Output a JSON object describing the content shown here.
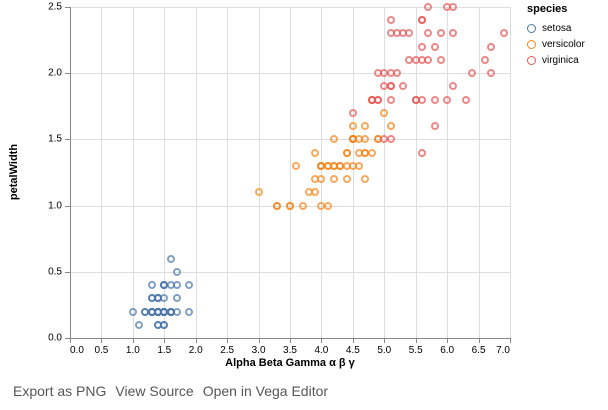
{
  "chart_data": {
    "type": "scatter",
    "xlabel": "Alpha Beta Gamma α β γ",
    "ylabel": "petalWidth",
    "xlim": [
      0,
      7
    ],
    "ylim": [
      0,
      2.5
    ],
    "x_tick_labels": [
      "0.0",
      "0.5",
      "1.0",
      "1.5",
      "2.0",
      "2.5",
      "3.0",
      "3.5",
      "4.0",
      "4.5",
      "5.0",
      "5.5",
      "6.0",
      "6.5",
      "7.0"
    ],
    "y_tick_labels": [
      "0.0",
      "0.5",
      "1.0",
      "1.5",
      "2.0",
      "2.5"
    ],
    "grid": true,
    "legend": {
      "title": "species",
      "position": "top-right"
    },
    "series": [
      {
        "name": "setosa",
        "color": "#4c78a8",
        "points": [
          [
            1.4,
            0.2
          ],
          [
            1.4,
            0.2
          ],
          [
            1.3,
            0.2
          ],
          [
            1.5,
            0.2
          ],
          [
            1.4,
            0.2
          ],
          [
            1.7,
            0.4
          ],
          [
            1.4,
            0.3
          ],
          [
            1.5,
            0.2
          ],
          [
            1.4,
            0.2
          ],
          [
            1.5,
            0.1
          ],
          [
            1.5,
            0.2
          ],
          [
            1.6,
            0.2
          ],
          [
            1.4,
            0.1
          ],
          [
            1.1,
            0.1
          ],
          [
            1.2,
            0.2
          ],
          [
            1.5,
            0.4
          ],
          [
            1.3,
            0.4
          ],
          [
            1.4,
            0.3
          ],
          [
            1.7,
            0.3
          ],
          [
            1.5,
            0.3
          ],
          [
            1.7,
            0.2
          ],
          [
            1.5,
            0.4
          ],
          [
            1.0,
            0.2
          ],
          [
            1.7,
            0.5
          ],
          [
            1.9,
            0.2
          ],
          [
            1.6,
            0.2
          ],
          [
            1.6,
            0.4
          ],
          [
            1.5,
            0.2
          ],
          [
            1.4,
            0.2
          ],
          [
            1.6,
            0.2
          ],
          [
            1.6,
            0.2
          ],
          [
            1.5,
            0.4
          ],
          [
            1.5,
            0.1
          ],
          [
            1.4,
            0.2
          ],
          [
            1.5,
            0.2
          ],
          [
            1.2,
            0.2
          ],
          [
            1.3,
            0.2
          ],
          [
            1.4,
            0.1
          ],
          [
            1.3,
            0.2
          ],
          [
            1.5,
            0.2
          ],
          [
            1.3,
            0.3
          ],
          [
            1.3,
            0.3
          ],
          [
            1.3,
            0.2
          ],
          [
            1.6,
            0.6
          ],
          [
            1.9,
            0.4
          ],
          [
            1.4,
            0.3
          ],
          [
            1.6,
            0.2
          ],
          [
            1.4,
            0.2
          ],
          [
            1.5,
            0.2
          ],
          [
            1.4,
            0.2
          ]
        ]
      },
      {
        "name": "versicolor",
        "color": "#f58518",
        "points": [
          [
            4.7,
            1.4
          ],
          [
            4.5,
            1.5
          ],
          [
            4.9,
            1.5
          ],
          [
            4.0,
            1.3
          ],
          [
            4.6,
            1.5
          ],
          [
            4.5,
            1.3
          ],
          [
            4.7,
            1.6
          ],
          [
            3.3,
            1.0
          ],
          [
            4.6,
            1.3
          ],
          [
            3.9,
            1.4
          ],
          [
            3.5,
            1.0
          ],
          [
            4.2,
            1.5
          ],
          [
            4.0,
            1.0
          ],
          [
            4.7,
            1.4
          ],
          [
            3.6,
            1.3
          ],
          [
            4.4,
            1.4
          ],
          [
            4.5,
            1.5
          ],
          [
            4.1,
            1.0
          ],
          [
            4.5,
            1.5
          ],
          [
            3.9,
            1.1
          ],
          [
            4.8,
            1.8
          ],
          [
            4.0,
            1.3
          ],
          [
            4.9,
            1.5
          ],
          [
            4.7,
            1.2
          ],
          [
            4.3,
            1.3
          ],
          [
            4.4,
            1.4
          ],
          [
            4.8,
            1.4
          ],
          [
            5.0,
            1.7
          ],
          [
            4.5,
            1.5
          ],
          [
            3.5,
            1.0
          ],
          [
            3.8,
            1.1
          ],
          [
            3.7,
            1.0
          ],
          [
            3.9,
            1.2
          ],
          [
            5.1,
            1.6
          ],
          [
            4.5,
            1.5
          ],
          [
            4.5,
            1.6
          ],
          [
            4.7,
            1.5
          ],
          [
            4.4,
            1.3
          ],
          [
            4.1,
            1.3
          ],
          [
            4.0,
            1.3
          ],
          [
            4.4,
            1.2
          ],
          [
            4.6,
            1.4
          ],
          [
            4.0,
            1.2
          ],
          [
            3.3,
            1.0
          ],
          [
            4.2,
            1.3
          ],
          [
            4.2,
            1.2
          ],
          [
            4.2,
            1.3
          ],
          [
            4.3,
            1.3
          ],
          [
            3.0,
            1.1
          ],
          [
            4.1,
            1.3
          ]
        ]
      },
      {
        "name": "virginica",
        "color": "#e45756",
        "points": [
          [
            6.0,
            2.5
          ],
          [
            5.1,
            1.9
          ],
          [
            5.9,
            2.1
          ],
          [
            5.6,
            1.8
          ],
          [
            5.8,
            2.2
          ],
          [
            6.6,
            2.1
          ],
          [
            4.5,
            1.7
          ],
          [
            6.3,
            1.8
          ],
          [
            5.8,
            1.8
          ],
          [
            6.1,
            2.5
          ],
          [
            5.1,
            2.0
          ],
          [
            5.3,
            1.9
          ],
          [
            5.5,
            2.1
          ],
          [
            5.0,
            2.0
          ],
          [
            5.1,
            2.4
          ],
          [
            5.3,
            2.3
          ],
          [
            5.5,
            1.8
          ],
          [
            6.7,
            2.2
          ],
          [
            6.9,
            2.3
          ],
          [
            5.0,
            1.5
          ],
          [
            5.7,
            2.3
          ],
          [
            4.9,
            2.0
          ],
          [
            6.7,
            2.0
          ],
          [
            4.9,
            1.8
          ],
          [
            5.7,
            2.1
          ],
          [
            6.0,
            1.8
          ],
          [
            4.8,
            1.8
          ],
          [
            4.9,
            1.8
          ],
          [
            5.6,
            2.1
          ],
          [
            5.8,
            1.6
          ],
          [
            6.1,
            1.9
          ],
          [
            6.4,
            2.0
          ],
          [
            5.6,
            2.2
          ],
          [
            5.1,
            1.5
          ],
          [
            5.6,
            1.4
          ],
          [
            6.1,
            2.3
          ],
          [
            5.6,
            2.4
          ],
          [
            5.5,
            1.8
          ],
          [
            4.8,
            1.8
          ],
          [
            5.4,
            2.1
          ],
          [
            5.6,
            2.4
          ],
          [
            5.1,
            2.3
          ],
          [
            5.1,
            1.9
          ],
          [
            5.9,
            2.3
          ],
          [
            5.7,
            2.5
          ],
          [
            5.2,
            2.3
          ],
          [
            5.0,
            1.9
          ],
          [
            5.2,
            2.0
          ],
          [
            5.4,
            2.3
          ],
          [
            5.1,
            1.8
          ]
        ]
      }
    ]
  },
  "footer": {
    "links": [
      "Export as PNG",
      "View Source",
      "Open in Vega Editor"
    ]
  }
}
